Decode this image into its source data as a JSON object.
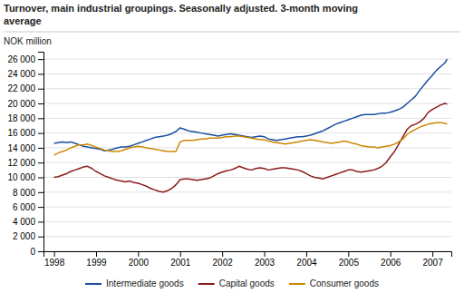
{
  "chart_data": {
    "type": "line",
    "title": "Turnover, main industrial groupings. Seasonally adjusted. 3-month moving\naverage",
    "y_label": "NOK million",
    "x": [
      1998.0,
      1998.1,
      1998.2,
      1998.3,
      1998.4,
      1998.5,
      1998.6,
      1998.7,
      1998.8,
      1998.9,
      1999.0,
      1999.1,
      1999.2,
      1999.3,
      1999.4,
      1999.5,
      1999.6,
      1999.7,
      1999.8,
      1999.9,
      2000.0,
      2000.1,
      2000.2,
      2000.3,
      2000.4,
      2000.5,
      2000.6,
      2000.7,
      2000.8,
      2000.9,
      2001.0,
      2001.1,
      2001.2,
      2001.3,
      2001.4,
      2001.5,
      2001.6,
      2001.7,
      2001.8,
      2001.9,
      2002.0,
      2002.1,
      2002.2,
      2002.3,
      2002.4,
      2002.5,
      2002.6,
      2002.7,
      2002.8,
      2002.9,
      2003.0,
      2003.1,
      2003.2,
      2003.3,
      2003.4,
      2003.5,
      2003.6,
      2003.7,
      2003.8,
      2003.9,
      2004.0,
      2004.1,
      2004.2,
      2004.3,
      2004.4,
      2004.5,
      2004.6,
      2004.7,
      2004.8,
      2004.9,
      2005.0,
      2005.1,
      2005.2,
      2005.3,
      2005.4,
      2005.5,
      2005.6,
      2005.7,
      2005.8,
      2005.9,
      2006.0,
      2006.1,
      2006.2,
      2006.3,
      2006.4,
      2006.5,
      2006.6,
      2006.7,
      2006.8,
      2006.9,
      2007.0,
      2007.1,
      2007.2,
      2007.3,
      2007.35
    ],
    "series": [
      {
        "name": "Intermediate goods",
        "color": "#1a4fa0",
        "values": [
          14600,
          14700,
          14800,
          14700,
          14800,
          14600,
          14400,
          14200,
          14100,
          14000,
          13900,
          13800,
          13600,
          13700,
          13800,
          14000,
          14100,
          14100,
          14200,
          14400,
          14600,
          14800,
          15000,
          15200,
          15400,
          15500,
          15600,
          15700,
          15900,
          16200,
          16700,
          16500,
          16300,
          16200,
          16100,
          16000,
          15900,
          15800,
          15700,
          15600,
          15700,
          15800,
          15900,
          15800,
          15700,
          15600,
          15500,
          15400,
          15500,
          15600,
          15500,
          15200,
          15100,
          15000,
          15100,
          15200,
          15300,
          15400,
          15500,
          15500,
          15600,
          15700,
          15900,
          16100,
          16300,
          16600,
          16900,
          17200,
          17400,
          17600,
          17800,
          18000,
          18200,
          18400,
          18500,
          18500,
          18500,
          18600,
          18700,
          18700,
          18800,
          19000,
          19200,
          19500,
          20000,
          20500,
          21000,
          21800,
          22500,
          23200,
          23800,
          24500,
          25000,
          25500,
          26000
        ]
      },
      {
        "name": "Capital goods",
        "color": "#8b1a1a",
        "values": [
          10000,
          10100,
          10300,
          10500,
          10800,
          11000,
          11200,
          11400,
          11500,
          11200,
          10800,
          10500,
          10200,
          10000,
          9800,
          9600,
          9500,
          9400,
          9500,
          9300,
          9200,
          9000,
          8800,
          8500,
          8300,
          8100,
          8000,
          8200,
          8500,
          9000,
          9700,
          9800,
          9800,
          9700,
          9600,
          9700,
          9800,
          9900,
          10200,
          10500,
          10700,
          10900,
          11000,
          11200,
          11500,
          11300,
          11100,
          11000,
          11200,
          11300,
          11200,
          11000,
          11100,
          11200,
          11300,
          11300,
          11200,
          11100,
          11000,
          10800,
          10500,
          10200,
          10000,
          9900,
          9800,
          10000,
          10200,
          10400,
          10600,
          10800,
          11000,
          11000,
          10800,
          10700,
          10800,
          10900,
          11000,
          11200,
          11500,
          12000,
          12800,
          13500,
          14500,
          15500,
          16500,
          17000,
          17200,
          17500,
          18000,
          18800,
          19200,
          19500,
          19800,
          20000,
          19900
        ]
      },
      {
        "name": "Consumer goods",
        "color": "#cc8800",
        "values": [
          13000,
          13300,
          13500,
          13700,
          14000,
          14200,
          14400,
          14400,
          14500,
          14300,
          14100,
          13900,
          13700,
          13600,
          13500,
          13500,
          13600,
          13800,
          14000,
          14100,
          14200,
          14100,
          14000,
          13900,
          13800,
          13700,
          13600,
          13500,
          13500,
          13500,
          14800,
          15000,
          15000,
          15000,
          15100,
          15200,
          15200,
          15300,
          15300,
          15300,
          15400,
          15500,
          15500,
          15600,
          15600,
          15500,
          15400,
          15300,
          15200,
          15100,
          15100,
          14900,
          14800,
          14700,
          14600,
          14500,
          14600,
          14700,
          14800,
          14900,
          15000,
          15100,
          15000,
          14900,
          14800,
          14700,
          14600,
          14700,
          14800,
          14900,
          14800,
          14600,
          14500,
          14300,
          14200,
          14100,
          14100,
          14000,
          14100,
          14200,
          14300,
          14500,
          14800,
          15200,
          15800,
          16200,
          16500,
          16800,
          17000,
          17200,
          17300,
          17400,
          17400,
          17300,
          17200
        ]
      }
    ],
    "xlim": [
      1997.75,
      2007.45
    ],
    "xticks": [
      1998,
      1999,
      2000,
      2001,
      2002,
      2003,
      2004,
      2005,
      2006,
      2007
    ],
    "ylim": [
      0,
      27000
    ],
    "yticks": [
      0,
      {
        "value": 2000,
        "label": "2 000"
      },
      {
        "value": 4000,
        "label": "4 000"
      },
      {
        "value": 6000,
        "label": "6 000"
      },
      {
        "value": 8000,
        "label": "8 000"
      },
      {
        "value": 10000,
        "label": "10 000"
      },
      {
        "value": 12000,
        "label": "12 000"
      },
      {
        "value": 14000,
        "label": "14 000"
      },
      {
        "value": 16000,
        "label": "16 000"
      },
      {
        "value": 18000,
        "label": "18 000"
      },
      {
        "value": 20000,
        "label": "20 000"
      },
      {
        "value": 22000,
        "label": "22 000"
      },
      {
        "value": 24000,
        "label": "24 000"
      },
      {
        "value": 26000,
        "label": "26 000"
      }
    ],
    "grid": true,
    "legend": "bottom"
  }
}
